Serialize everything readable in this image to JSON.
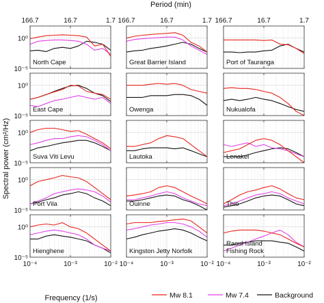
{
  "chart_data": {
    "type": "line",
    "top_axis_label": "Period (min)",
    "top_tick_labels": [
      "166.7",
      "16.7",
      "1.7"
    ],
    "xlabel": "Frequency (1/s)",
    "ylabel": "Spectral power (cm²/Hz)",
    "x_scale": "log",
    "y_scale": "log",
    "xlim": [
      0.0001,
      0.01
    ],
    "ylim": [
      1e-05,
      100
    ],
    "x_tick_labels": [
      "10⁻⁴",
      "10⁻³",
      "10⁻²"
    ],
    "y_tick_labels": [
      "10⁰",
      "10⁻⁵"
    ],
    "grid": true,
    "legend": {
      "placement": "bottom",
      "entries": [
        {
          "name": "Mw 8.1",
          "color": "#e8231c"
        },
        {
          "name": "Mw 7.4",
          "color": "#e040e8"
        },
        {
          "name": "Background",
          "color": "#111111"
        }
      ]
    },
    "x": [
      0.0001,
      0.000158,
      0.000251,
      0.000398,
      0.000631,
      0.001,
      0.00158,
      0.00251,
      0.00398,
      0.00631,
      0.01
    ],
    "panels": [
      {
        "name": "North Cape",
        "red": [
          0.8,
          1.5,
          2.5,
          3,
          3.5,
          3,
          2.5,
          1.5,
          0.05,
          0.1,
          0.001
        ],
        "magenta": [
          0.1,
          0.3,
          0.4,
          0.5,
          0.5,
          0.4,
          0.3,
          0.1,
          0.01,
          0.02,
          0.002
        ],
        "black": [
          0.008,
          0.01,
          0.006,
          0.02,
          0.03,
          0.02,
          0.05,
          0.3,
          0.2,
          0.1,
          0.01
        ]
      },
      {
        "name": "Great Barrier Island",
        "red": [
          1,
          2,
          3,
          4,
          5,
          6,
          8,
          3,
          0.2,
          0.05,
          0.005
        ],
        "magenta": [
          0.3,
          0.6,
          0.8,
          1,
          1.2,
          1.5,
          1.5,
          0.5,
          0.05,
          0.01,
          0.002
        ],
        "black": [
          0.005,
          0.008,
          0.01,
          0.02,
          0.03,
          0.05,
          0.1,
          0.2,
          0.1,
          0.02,
          0.005
        ]
      },
      {
        "name": "Port of Tauranga",
        "red": [
          0.5,
          0.5,
          0.5,
          0.5,
          0.5,
          0.4,
          0.5,
          0.1,
          0.08,
          0.02,
          0.003
        ],
        "black": [
          0.005,
          0.005,
          0.004,
          0.005,
          0.005,
          0.008,
          0.01,
          0.05,
          0.1,
          0.02,
          0.005
        ]
      },
      {
        "name": "East Cape",
        "red": [
          0.005,
          0.01,
          0.03,
          0.08,
          0.2,
          1,
          0.8,
          0.1,
          0.05,
          0.03,
          0.005
        ],
        "magenta": [
          0.0005,
          0.0003,
          0.001,
          0.003,
          0.005,
          0.01,
          0.02,
          0.01,
          0.005,
          0.01,
          0.001
        ],
        "black": [
          0.005,
          0.01,
          0.03,
          0.1,
          0.3,
          0.8,
          1,
          0.3,
          0.05,
          0.02,
          0.002
        ]
      },
      {
        "name": "Owenga",
        "red": [
          1,
          1,
          1,
          1.5,
          2,
          1.5,
          2,
          1,
          0.2,
          0.1,
          0.05
        ],
        "black": [
          0.01,
          0.01,
          0.01,
          0.02,
          0.02,
          0.02,
          0.03,
          0.03,
          0.02,
          0.005,
          0.0005
        ]
      },
      {
        "name": "Nukualofa",
        "red": [
          0.3,
          0.4,
          0.3,
          0.3,
          0.2,
          0.1,
          0.05,
          0.01,
          0.001,
          5e-05,
          1e-05
        ],
        "black": [
          0.003,
          0.005,
          0.003,
          0.005,
          0.01,
          0.005,
          0.003,
          0.001,
          0.0003,
          0.0001,
          5e-05
        ]
      },
      {
        "name": "Suva Viti Levu",
        "red": [
          1,
          3,
          5,
          5,
          3,
          1.5,
          2,
          0.5,
          0.1,
          0.02,
          0.002
        ],
        "magenta": [
          0.01,
          0.02,
          0.05,
          0.1,
          0.1,
          0.2,
          0.3,
          0.2,
          0.05,
          0.01,
          0.001
        ],
        "black": [
          0.001,
          0.003,
          0.005,
          0.01,
          0.02,
          0.03,
          0.05,
          0.05,
          0.02,
          0.005,
          0.001
        ]
      },
      {
        "name": "Lautoka",
        "red": [
          0.005,
          0.005,
          0.01,
          0.02,
          0.1,
          0.3,
          0.2,
          0.1,
          0.01,
          0.001,
          0.0001
        ],
        "black": [
          0.001,
          0.001,
          0.002,
          0.003,
          0.003,
          0.003,
          0.002,
          0.003,
          0.001,
          0.0003,
          0.0001
        ]
      },
      {
        "name": "Lenakel",
        "red": [
          0.0005,
          0.001,
          0.002,
          0.01,
          0.05,
          0.1,
          0.05,
          0.01,
          0.001,
          0.0001,
          1e-05
        ],
        "magenta": [
          0.01,
          0.005,
          0.01,
          0.02,
          0.005,
          0.01,
          0.003,
          0.002,
          0.001,
          0.0003,
          0.0001
        ],
        "black": [
          0.0001,
          0.0001,
          0.0001,
          0.0002,
          0.0005,
          0.001,
          0.002,
          0.003,
          0.002,
          0.0005,
          0.0001
        ]
      },
      {
        "name": "Port Vila",
        "red": [
          0.1,
          0.5,
          1,
          2,
          5,
          3,
          2,
          0.5,
          0.05,
          0.005,
          0.0005
        ],
        "magenta": [
          0.0001,
          0.0003,
          0.001,
          0.005,
          0.01,
          0.02,
          0.03,
          0.02,
          0.01,
          0.002,
          0.0002
        ],
        "black": [
          0.0001,
          0.0002,
          0.0005,
          0.001,
          0.003,
          0.005,
          0.01,
          0.005,
          0.001,
          0.0003,
          5e-05
        ]
      },
      {
        "name": "Ouinne",
        "red": [
          0.002,
          0.003,
          0.005,
          0.01,
          0.05,
          0.1,
          0.05,
          0.01,
          0.002,
          0.0005,
          0.0001
        ],
        "magenta": [
          0.0005,
          0.0005,
          0.001,
          0.002,
          0.005,
          0.01,
          0.005,
          0.001,
          0.0003,
          0.0001,
          5e-05
        ],
        "black": [
          0.0003,
          0.0003,
          0.0005,
          0.001,
          0.002,
          0.003,
          0.002,
          0.0005,
          0.0002,
          5e-05,
          1e-05
        ]
      },
      {
        "name": "Thio",
        "red": [
          0.0001,
          0.0005,
          0.003,
          0.01,
          0.02,
          0.05,
          0.1,
          0.03,
          0.005,
          0.001,
          0.0005
        ],
        "magenta": [
          5e-05,
          0.0001,
          0.0003,
          0.001,
          0.003,
          0.005,
          0.01,
          0.005,
          0.001,
          0.0003,
          0.0001
        ],
        "black": [
          3e-05,
          5e-05,
          0.0001,
          0.0003,
          0.001,
          0.002,
          0.003,
          0.002,
          0.0005,
          0.0001,
          5e-05
        ]
      },
      {
        "name": "Hienghene",
        "red": [
          1,
          2,
          3,
          2,
          5,
          1,
          0.5,
          0.1,
          0.01,
          0.001,
          0.0001
        ],
        "magenta": [
          0.05,
          0.1,
          0.2,
          0.3,
          0.2,
          0.1,
          0.05,
          0.01,
          0.001,
          0.0003,
          0.0001
        ],
        "black": [
          0.01,
          0.01,
          0.03,
          0.05,
          0.03,
          0.02,
          0.01,
          0.005,
          0.001,
          0.0003,
          5e-05
        ]
      },
      {
        "name": "Kingston Jetty Norfolk",
        "red": [
          3,
          5,
          5,
          5,
          8,
          10,
          15,
          20,
          10,
          1,
          0.1
        ],
        "magenta": [
          0.3,
          0.5,
          1,
          2,
          3,
          5,
          5,
          3,
          1,
          0.2,
          0.02
        ],
        "black": [
          0.01,
          0.02,
          0.05,
          0.1,
          0.2,
          0.3,
          0.5,
          0.3,
          0.1,
          0.02,
          0.005
        ]
      },
      {
        "name": "Raoul Island\nFishing Rock",
        "red": [
          0.1,
          0.2,
          0.3,
          0.3,
          0.3,
          0.2,
          0.1,
          0.05,
          0.01,
          0.002,
          0.0005
        ],
        "magenta": [
          0.0001,
          0.0003,
          0.001,
          0.003,
          0.01,
          0.03,
          0.1,
          0.3,
          0.05,
          0.003,
          0.0005
        ],
        "black": [
          0.001,
          0.001,
          0.002,
          0.003,
          0.005,
          0.005,
          0.005,
          0.003,
          0.002,
          0.0005,
          0.0001
        ]
      }
    ]
  }
}
